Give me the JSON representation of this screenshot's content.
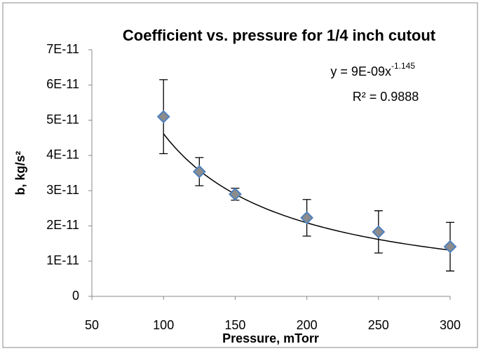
{
  "chart_data": {
    "type": "scatter",
    "title": "Coefficient vs. pressure for 1/4 inch cutout",
    "x_label": "Pressure, mTorr",
    "y_label": "b, kg/s²",
    "x": [
      100,
      125,
      150,
      200,
      250,
      300
    ],
    "values": [
      5.1e-11,
      3.54e-11,
      2.9e-11,
      2.23e-11,
      1.83e-11,
      1.41e-11
    ],
    "errors": [
      1.05e-11,
      4e-12,
      1.7e-12,
      5.2e-12,
      6e-12,
      6.9e-12
    ],
    "marker_color": "#4f81bd",
    "marker_fill": "#8c8c8c",
    "xlim": [
      50,
      300
    ],
    "xticks": [
      50,
      100,
      150,
      200,
      250,
      300
    ],
    "ylim": [
      0,
      7e-11
    ],
    "yticks": [
      0,
      {
        "value": 1e-11,
        "label": "1E-11"
      },
      {
        "value": 2e-11,
        "label": "2E-11"
      },
      {
        "value": 3e-11,
        "label": "3E-11"
      },
      {
        "value": 4e-11,
        "label": "4E-11"
      },
      {
        "value": 5e-11,
        "label": "5E-11"
      },
      {
        "value": 6e-11,
        "label": "6E-11"
      },
      {
        "value": 7e-11,
        "label": "7E-11"
      }
    ],
    "grid": false,
    "trendline": {
      "coefficient": 9e-09,
      "exponent": -1.145,
      "x_range": [
        100,
        300
      ],
      "equation": "y = 9E-09x",
      "equation_exponent": "-1.145",
      "r_squared_label": "R² = 0.9888"
    }
  }
}
